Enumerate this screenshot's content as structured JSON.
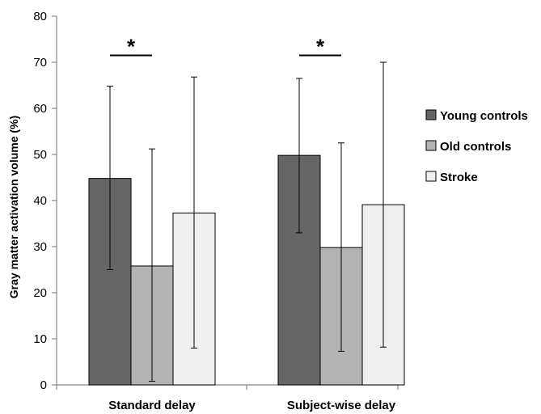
{
  "chart_data": {
    "type": "bar",
    "title": "",
    "xlabel": "",
    "ylabel": "Gray matter activation volume (%)",
    "ylim": [
      0,
      80
    ],
    "yticks": [
      0,
      10,
      20,
      30,
      40,
      50,
      60,
      70,
      80
    ],
    "grid": false,
    "legend_position": "right",
    "categories": [
      "Standard delay",
      "Subject-wise delay"
    ],
    "series": [
      {
        "name": "Young controls",
        "color": "#666666",
        "values": [
          44.8,
          49.8
        ],
        "error_low": [
          25.0,
          33.0
        ],
        "error_high": [
          64.8,
          66.5
        ]
      },
      {
        "name": "Old controls",
        "color": "#b3b3b3",
        "values": [
          25.8,
          29.8
        ],
        "error_low": [
          0.8,
          7.3
        ],
        "error_high": [
          51.2,
          52.5
        ]
      },
      {
        "name": "Stroke",
        "color": "#efefef",
        "values": [
          37.3,
          39.1
        ],
        "error_low": [
          8.0,
          8.2
        ],
        "error_high": [
          66.8,
          70.0
        ]
      }
    ],
    "significance": [
      {
        "category_index": 0,
        "label": "*"
      },
      {
        "category_index": 1,
        "label": "*"
      }
    ]
  }
}
